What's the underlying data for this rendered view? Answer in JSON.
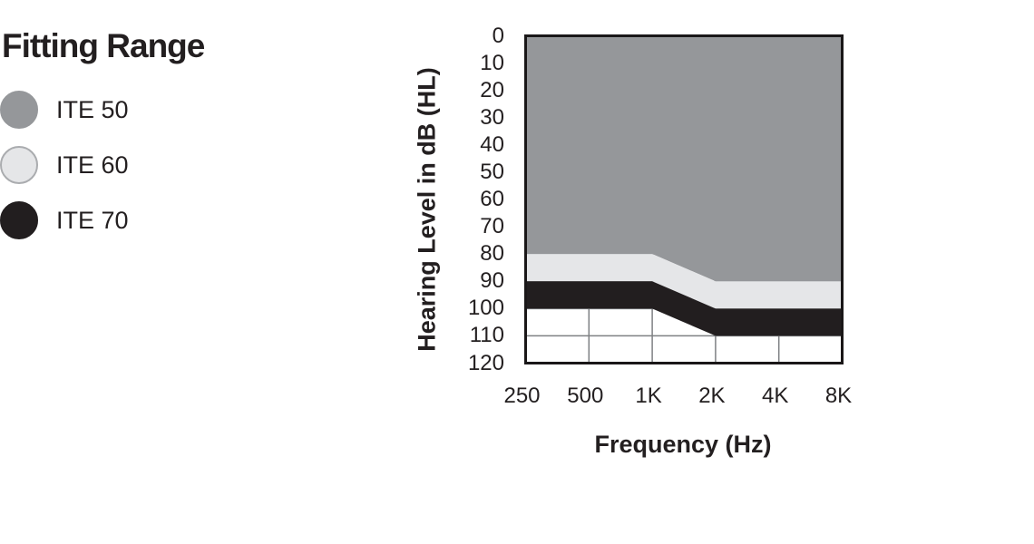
{
  "title": "Fitting Range",
  "legend": {
    "items": [
      {
        "label": "ITE 50",
        "color": "#95979A",
        "border_color": "#95979A"
      },
      {
        "label": "ITE 60",
        "color": "#E5E6E8",
        "border_color": "#AAACAF"
      },
      {
        "label": "ITE 70",
        "color": "#221E1F",
        "border_color": "#221E1F"
      }
    ]
  },
  "chart_data": {
    "type": "area",
    "title": "Fitting Range",
    "xlabel": "Frequency (Hz)",
    "ylabel": "Hearing Level in dB (HL)",
    "x_categories": [
      "250",
      "500",
      "1K",
      "2K",
      "4K",
      "8K"
    ],
    "y_ticks": [
      0,
      10,
      20,
      30,
      40,
      50,
      60,
      70,
      80,
      90,
      100,
      110,
      120
    ],
    "y_axis": {
      "min": 0,
      "max": 120,
      "inverted": true,
      "unit": "dB HL"
    },
    "grid": {
      "show": true,
      "color": "#7E8083"
    },
    "plot_border_color": "#1A1718",
    "plot_background": "#FFFFFF",
    "legend_position": "top-left",
    "series": [
      {
        "name": "ITE 50",
        "color": "#95979A",
        "upper_db": [
          0,
          0,
          0,
          0,
          0,
          0
        ],
        "lower_db": [
          80,
          80,
          80,
          90,
          90,
          90
        ]
      },
      {
        "name": "ITE 60",
        "color": "#E5E6E8",
        "upper_db": [
          80,
          80,
          80,
          90,
          90,
          90
        ],
        "lower_db": [
          90,
          90,
          90,
          100,
          100,
          100
        ]
      },
      {
        "name": "ITE 70",
        "color": "#221E1F",
        "upper_db": [
          90,
          90,
          90,
          100,
          100,
          100
        ],
        "lower_db": [
          100,
          100,
          100,
          110,
          110,
          110
        ]
      }
    ]
  }
}
